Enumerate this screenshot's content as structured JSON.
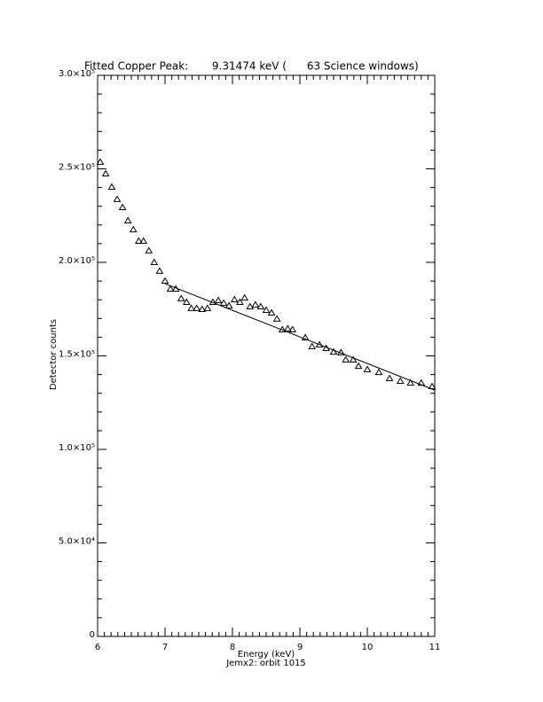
{
  "chart_data": {
    "type": "scatter",
    "title": "Fitted Copper Peak:       9.31474 keV (      63 Science windows)",
    "x_label": "Energy (keV)",
    "subtitle": "Jemx2: orbit 1015",
    "y_label": "Detector counts",
    "xlim": [
      6,
      11
    ],
    "ylim": [
      0,
      300000
    ],
    "xticks": [
      6,
      7,
      8,
      9,
      10,
      11
    ],
    "yticks": [
      0,
      {
        "value": 50000,
        "label": "5.0×10⁴"
      },
      {
        "value": 100000,
        "label": "1.0×10⁵"
      },
      {
        "value": 150000,
        "label": "1.5×10⁵"
      },
      {
        "value": 200000,
        "label": "2.0×10⁵"
      },
      {
        "value": 250000,
        "label": "2.5×10⁵"
      },
      {
        "value": 300000,
        "label": "3.0×10⁵"
      }
    ],
    "color": "#000000",
    "series": [
      {
        "type": "scatter",
        "x": [
          6.04,
          6.12,
          6.21,
          6.29,
          6.37,
          6.45,
          6.53,
          6.61,
          6.68,
          6.76,
          6.84,
          6.92,
          7.0,
          7.08,
          7.16,
          7.24,
          7.32,
          7.39,
          7.47,
          7.55,
          7.63,
          7.71,
          7.79,
          7.87,
          7.95,
          8.03,
          8.11,
          8.18,
          8.26,
          8.34,
          8.42,
          8.5,
          8.58,
          8.66,
          8.74,
          8.82,
          8.89,
          9.08,
          9.18,
          9.29,
          9.39,
          9.5,
          9.61,
          9.68,
          9.79,
          9.87,
          10.0,
          10.17,
          10.33,
          10.49,
          10.64,
          10.8,
          10.96
        ],
        "values": [
          253600,
          247400,
          240300,
          233700,
          229400,
          222300,
          217500,
          211400,
          211400,
          206200,
          200000,
          195300,
          190000,
          185800,
          185800,
          180600,
          178700,
          175400,
          175400,
          174900,
          175400,
          178700,
          179600,
          178200,
          176800,
          180100,
          178700,
          181000,
          176300,
          177300,
          176300,
          174400,
          173000,
          169700,
          164000,
          164500,
          164000,
          159700,
          155000,
          155900,
          154000,
          152100,
          151700,
          147900,
          147900,
          144500,
          142700,
          141200,
          137900,
          136500,
          135500,
          135500,
          133600
        ]
      },
      {
        "type": "line",
        "x": [
          7,
          11
        ],
        "values": [
          188600,
          131700
        ]
      }
    ]
  }
}
